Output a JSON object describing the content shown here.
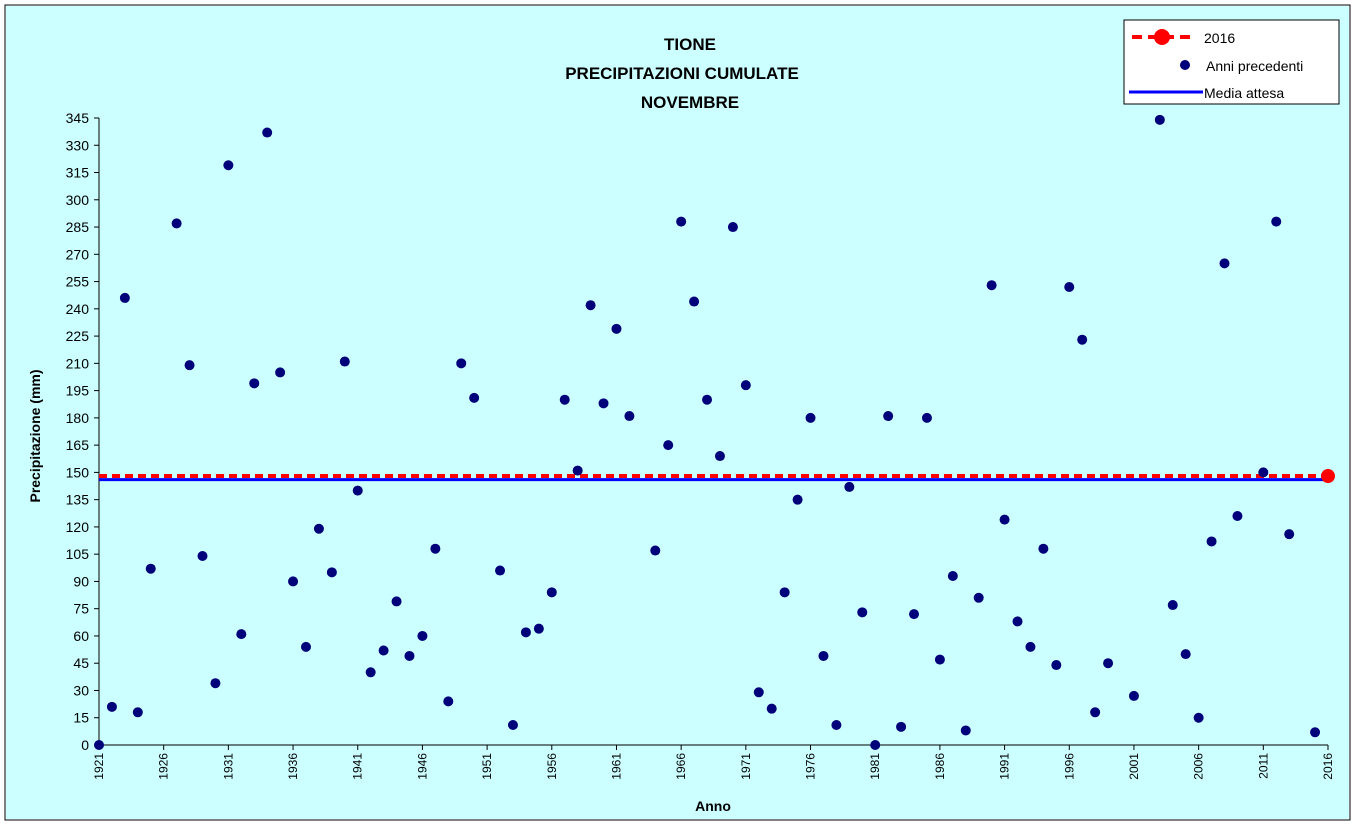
{
  "colors": {
    "page_bg": "#ffffff",
    "plot_bg": "#ccffff",
    "border": "#000000",
    "previous_years": "#00007a",
    "year_2016": "#ff0000",
    "expected_mean": "#0000ff"
  },
  "chart_data": {
    "type": "scatter",
    "title_lines": [
      "TIONE",
      "PRECIPITAZIONI CUMULATE",
      "NOVEMBRE"
    ],
    "xlabel": "Anno",
    "ylabel": "Precipitazione (mm)",
    "xlim": [
      1921,
      2016
    ],
    "ylim": [
      0,
      345
    ],
    "y_ticks": [
      0,
      15,
      30,
      45,
      60,
      75,
      90,
      105,
      120,
      135,
      150,
      165,
      180,
      195,
      210,
      225,
      240,
      255,
      270,
      285,
      300,
      315,
      330,
      345
    ],
    "x_ticks": [
      1921,
      1926,
      1931,
      1936,
      1941,
      1946,
      1951,
      1956,
      1961,
      1966,
      1971,
      1976,
      1981,
      1986,
      1991,
      1996,
      2001,
      2006,
      2011,
      2016
    ],
    "grid": false,
    "legend": {
      "position": "top-right",
      "entries": [
        "2016",
        "Anni precedenti",
        "Media attesa"
      ]
    },
    "series": [
      {
        "name": "Anni precedenti",
        "kind": "points",
        "x": [
          1921,
          1922,
          1923,
          1924,
          1925,
          1927,
          1928,
          1929,
          1930,
          1931,
          1932,
          1933,
          1934,
          1935,
          1936,
          1937,
          1938,
          1939,
          1940,
          1941,
          1942,
          1943,
          1944,
          1945,
          1946,
          1947,
          1948,
          1949,
          1950,
          1952,
          1953,
          1954,
          1955,
          1956,
          1957,
          1958,
          1959,
          1960,
          1961,
          1962,
          1964,
          1965,
          1966,
          1967,
          1968,
          1969,
          1970,
          1971,
          1972,
          1973,
          1974,
          1975,
          1976,
          1977,
          1978,
          1979,
          1980,
          1981,
          1982,
          1983,
          1984,
          1985,
          1986,
          1987,
          1988,
          1989,
          1990,
          1991,
          1992,
          1993,
          1994,
          1995,
          1996,
          1997,
          1998,
          1999,
          2001,
          2003,
          2004,
          2005,
          2006,
          2007,
          2008,
          2009,
          2011,
          2012,
          2013,
          2015
        ],
        "y": [
          0,
          21,
          246,
          18,
          97,
          287,
          209,
          104,
          34,
          319,
          61,
          199,
          337,
          205,
          90,
          54,
          119,
          95,
          211,
          140,
          40,
          52,
          79,
          49,
          60,
          108,
          24,
          210,
          191,
          96,
          11,
          62,
          64,
          84,
          190,
          151,
          242,
          188,
          229,
          181,
          107,
          165,
          288,
          244,
          190,
          159,
          285,
          198,
          29,
          20,
          84,
          135,
          180,
          49,
          11,
          142,
          73,
          0,
          181,
          10,
          72,
          180,
          47,
          93,
          8,
          81,
          253,
          124,
          68,
          54,
          108,
          44,
          252,
          223,
          18,
          45,
          27,
          344,
          77,
          50,
          15,
          112,
          265,
          126,
          150,
          288,
          116,
          7
        ]
      },
      {
        "name": "2016",
        "kind": "point-with-dashed-line",
        "x": [
          2016
        ],
        "y": [
          148
        ]
      },
      {
        "name": "Media attesa",
        "kind": "line",
        "y": [
          146
        ]
      }
    ]
  }
}
